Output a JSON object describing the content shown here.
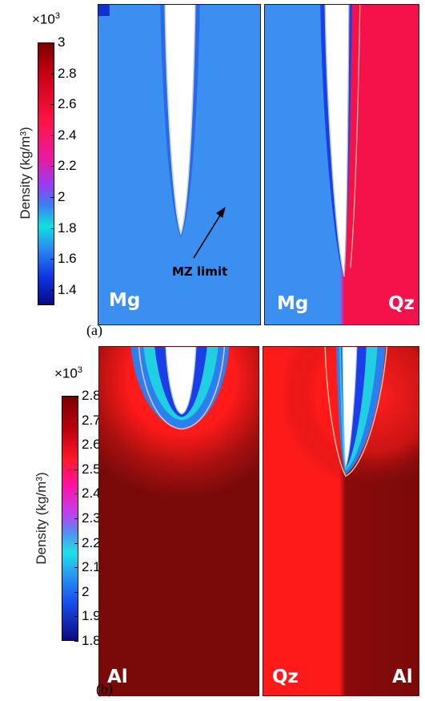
{
  "figure": {
    "part_a": {
      "label": "(a)",
      "colorbar": {
        "title": "Density (kg/m³)",
        "multiplier": "×10",
        "multiplier_exp": "3",
        "min": 1.3,
        "max": 3.0,
        "ticks": [
          "3",
          "2.8",
          "2.6",
          "2.4",
          "2.2",
          "2",
          "1.8",
          "1.6",
          "1.4"
        ],
        "tick_values": [
          3,
          2.8,
          2.6,
          2.4,
          2.2,
          2,
          1.8,
          1.6,
          1.4
        ]
      },
      "left_panel": {
        "material": "Mg",
        "annotation": "MZ limit"
      },
      "right_panel": {
        "material_left": "Mg",
        "material_right": "Qz"
      }
    },
    "part_b": {
      "label": "(b)",
      "colorbar": {
        "title": "Density (kg/m³)",
        "multiplier": "×10",
        "multiplier_exp": "3",
        "min": 1.8,
        "max": 2.8,
        "ticks": [
          "2.8",
          "2.7",
          "2.6",
          "2.5",
          "2.4",
          "2.3",
          "2.2",
          "2.1",
          "2",
          "1.9",
          "1.8"
        ],
        "tick_values": [
          2.8,
          2.7,
          2.6,
          2.5,
          2.4,
          2.3,
          2.2,
          2.1,
          2,
          1.9,
          1.8
        ]
      },
      "left_panel": {
        "material": "Al"
      },
      "right_panel": {
        "material_left": "Qz",
        "material_right": "Al"
      }
    },
    "colors": {
      "mg_blue": "#3a8ff0",
      "qz_red": "#f5124a",
      "al_dark_red": "#7a0a0a",
      "bright_red": "#ff1a1a"
    }
  }
}
